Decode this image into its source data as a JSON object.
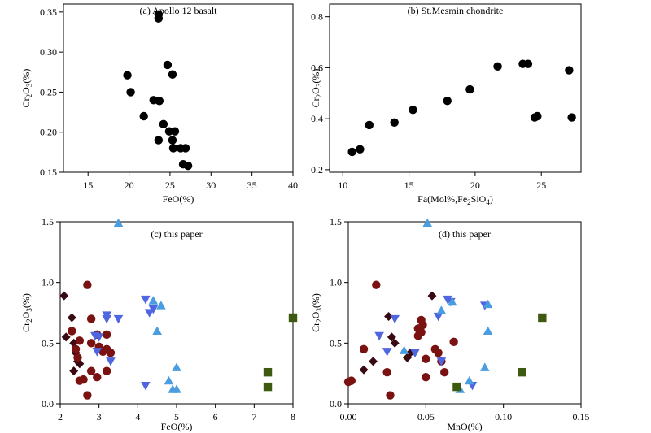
{
  "chart_data": [
    {
      "id": "a",
      "type": "scatter",
      "title": "(a) Apollo 12 basalt",
      "xlabel": "FeO(%)",
      "ylabel": {
        "base": "Cr",
        "sub1": "2",
        "mid": "O",
        "sub2": "3",
        "tail": "(%)"
      },
      "xlim": [
        12,
        40
      ],
      "ylim": [
        0.15,
        0.36
      ],
      "xticks": [
        15,
        20,
        25,
        30,
        35,
        40
      ],
      "yticks": [
        0.15,
        0.2,
        0.25,
        0.3,
        0.35
      ],
      "xtick_labels": [
        "15",
        "20",
        "25",
        "30",
        "35",
        "40"
      ],
      "ytick_labels": [
        "0.15",
        "0.20",
        "0.25",
        "0.30",
        "0.35"
      ],
      "series": [
        {
          "name": "Apollo 12 basalt",
          "marker": "circle",
          "color": "#000000",
          "points": [
            [
              23.6,
              0.347
            ],
            [
              23.6,
              0.342
            ],
            [
              19.8,
              0.271
            ],
            [
              20.2,
              0.25
            ],
            [
              21.8,
              0.22
            ],
            [
              23.0,
              0.24
            ],
            [
              23.7,
              0.239
            ],
            [
              24.2,
              0.21
            ],
            [
              23.6,
              0.19
            ],
            [
              24.7,
              0.284
            ],
            [
              25.3,
              0.272
            ],
            [
              24.9,
              0.201
            ],
            [
              25.6,
              0.201
            ],
            [
              25.3,
              0.19
            ],
            [
              25.4,
              0.18
            ],
            [
              26.3,
              0.18
            ],
            [
              26.9,
              0.18
            ],
            [
              26.6,
              0.16
            ],
            [
              27.2,
              0.158
            ]
          ]
        }
      ]
    },
    {
      "id": "b",
      "type": "scatter",
      "title": "(b) St.Mesmin chondrite",
      "xlabel": {
        "base": "Fa(Mol%,Fe",
        "sub1": "2",
        "mid": "SiO",
        "sub2": "4",
        "tail": ")"
      },
      "ylabel": {
        "base": "Cr",
        "sub1": "2",
        "mid": "O",
        "sub2": "3",
        "tail": "(%)"
      },
      "xlim": [
        9,
        28
      ],
      "ylim": [
        0.19,
        0.85
      ],
      "xticks": [
        10,
        15,
        20,
        25
      ],
      "yticks": [
        0.2,
        0.4,
        0.6,
        0.8
      ],
      "xtick_labels": [
        "10",
        "15",
        "20",
        "25"
      ],
      "ytick_labels": [
        "0.2",
        "0.4",
        "0.6",
        "0.8"
      ],
      "series": [
        {
          "name": "St.Mesmin chondrite",
          "marker": "circle",
          "color": "#000000",
          "points": [
            [
              10.7,
              0.27
            ],
            [
              11.3,
              0.28
            ],
            [
              12.0,
              0.375
            ],
            [
              13.9,
              0.385
            ],
            [
              15.3,
              0.435
            ],
            [
              17.9,
              0.47
            ],
            [
              19.6,
              0.515
            ],
            [
              21.7,
              0.605
            ],
            [
              23.6,
              0.615
            ],
            [
              24.0,
              0.615
            ],
            [
              24.5,
              0.405
            ],
            [
              24.7,
              0.41
            ],
            [
              27.1,
              0.59
            ],
            [
              27.3,
              0.405
            ]
          ]
        }
      ]
    },
    {
      "id": "c",
      "type": "scatter",
      "title": "(c) this paper",
      "xlabel": "FeO(%)",
      "ylabel": {
        "base": "Cr",
        "sub1": "2",
        "mid": "O",
        "sub2": "3",
        "tail": "(%)"
      },
      "xlim": [
        2,
        8
      ],
      "ylim": [
        0,
        1.5
      ],
      "xticks": [
        2,
        3,
        4,
        5,
        6,
        7,
        8
      ],
      "yticks": [
        0,
        0.5,
        1.0,
        1.5
      ],
      "xtick_labels": [
        "2",
        "3",
        "4",
        "5",
        "6",
        "7",
        "8"
      ],
      "ytick_labels": [
        "0.0",
        "0.5",
        "1.0",
        "1.5"
      ],
      "series": [
        {
          "name": "diamond",
          "marker": "diamond",
          "color": "#3a0a12",
          "points": [
            [
              2.1,
              0.89
            ],
            [
              2.15,
              0.55
            ],
            [
              2.3,
              0.71
            ],
            [
              2.35,
              0.5
            ],
            [
              2.4,
              0.42
            ],
            [
              2.35,
              0.27
            ],
            [
              2.45,
              0.35
            ],
            [
              2.5,
              0.33
            ]
          ]
        },
        {
          "name": "circle",
          "marker": "circle",
          "color": "#7a1212",
          "points": [
            [
              2.7,
              0.98
            ],
            [
              2.3,
              0.6
            ],
            [
              2.5,
              0.52
            ],
            [
              2.4,
              0.45
            ],
            [
              2.45,
              0.38
            ],
            [
              2.5,
              0.19
            ],
            [
              2.6,
              0.2
            ],
            [
              2.7,
              0.07
            ],
            [
              2.8,
              0.7
            ],
            [
              2.8,
              0.5
            ],
            [
              2.8,
              0.27
            ],
            [
              2.95,
              0.57
            ],
            [
              3.0,
              0.47
            ],
            [
              2.95,
              0.22
            ],
            [
              3.1,
              0.43
            ],
            [
              3.2,
              0.57
            ],
            [
              3.2,
              0.45
            ],
            [
              3.2,
              0.27
            ],
            [
              3.3,
              0.42
            ]
          ]
        },
        {
          "name": "down-triangle",
          "marker": "triangle-down",
          "color": "#4f66e0",
          "points": [
            [
              2.9,
              0.56
            ],
            [
              3.0,
              0.55
            ],
            [
              2.95,
              0.43
            ],
            [
              3.2,
              0.73
            ],
            [
              3.2,
              0.7
            ],
            [
              3.3,
              0.35
            ],
            [
              3.5,
              0.7
            ],
            [
              4.2,
              0.86
            ],
            [
              4.4,
              0.78
            ],
            [
              4.3,
              0.75
            ],
            [
              4.2,
              0.15
            ]
          ]
        },
        {
          "name": "up-triangle",
          "marker": "triangle-up",
          "color": "#4a9de0",
          "points": [
            [
              3.5,
              1.49
            ],
            [
              4.4,
              0.85
            ],
            [
              4.6,
              0.81
            ],
            [
              4.5,
              0.6
            ],
            [
              4.8,
              0.19
            ],
            [
              4.9,
              0.12
            ],
            [
              5.0,
              0.3
            ],
            [
              5.0,
              0.12
            ]
          ]
        },
        {
          "name": "square",
          "marker": "square",
          "color": "#3d5a10",
          "points": [
            [
              7.35,
              0.26
            ],
            [
              7.35,
              0.14
            ],
            [
              8.0,
              0.71
            ]
          ]
        }
      ]
    },
    {
      "id": "d",
      "type": "scatter",
      "title": "(d) this paper",
      "xlabel": "MnO(%)",
      "ylabel": {
        "base": "Cr",
        "sub1": "2",
        "mid": "O",
        "sub2": "3",
        "tail": "(%)"
      },
      "xlim": [
        0,
        0.15
      ],
      "ylim": [
        0,
        1.5
      ],
      "xticks": [
        0,
        0.05,
        0.1,
        0.15
      ],
      "yticks": [
        0,
        0.5,
        1.0,
        1.5
      ],
      "xtick_labels": [
        "0.00",
        "0.05",
        "0.10",
        "0.15"
      ],
      "ytick_labels": [
        "0.0",
        "0.5",
        "1.0",
        "1.5"
      ],
      "series": [
        {
          "name": "diamond",
          "marker": "diamond",
          "color": "#3a0a12",
          "points": [
            [
              0.054,
              0.89
            ],
            [
              0.026,
              0.72
            ],
            [
              0.028,
              0.55
            ],
            [
              0.03,
              0.5
            ],
            [
              0.04,
              0.42
            ],
            [
              0.038,
              0.38
            ],
            [
              0.016,
              0.35
            ],
            [
              0.01,
              0.28
            ]
          ]
        },
        {
          "name": "circle",
          "marker": "circle",
          "color": "#7a1212",
          "points": [
            [
              0.018,
              0.98
            ],
            [
              0.0,
              0.18
            ],
            [
              0.002,
              0.19
            ],
            [
              0.01,
              0.45
            ],
            [
              0.025,
              0.26
            ],
            [
              0.027,
              0.07
            ],
            [
              0.045,
              0.56
            ],
            [
              0.045,
              0.62
            ],
            [
              0.047,
              0.69
            ],
            [
              0.048,
              0.65
            ],
            [
              0.047,
              0.59
            ],
            [
              0.05,
              0.37
            ],
            [
              0.05,
              0.22
            ],
            [
              0.056,
              0.45
            ],
            [
              0.058,
              0.42
            ],
            [
              0.06,
              0.35
            ],
            [
              0.062,
              0.26
            ],
            [
              0.068,
              0.51
            ]
          ]
        },
        {
          "name": "down-triangle",
          "marker": "triangle-down",
          "color": "#4f66e0",
          "points": [
            [
              0.02,
              0.56
            ],
            [
              0.025,
              0.43
            ],
            [
              0.03,
              0.7
            ],
            [
              0.043,
              0.42
            ],
            [
              0.058,
              0.72
            ],
            [
              0.06,
              0.35
            ],
            [
              0.064,
              0.86
            ],
            [
              0.066,
              0.84
            ],
            [
              0.08,
              0.15
            ],
            [
              0.088,
              0.81
            ]
          ]
        },
        {
          "name": "up-triangle",
          "marker": "triangle-up",
          "color": "#4a9de0",
          "points": [
            [
              0.051,
              1.49
            ],
            [
              0.06,
              0.77
            ],
            [
              0.067,
              0.84
            ],
            [
              0.09,
              0.82
            ],
            [
              0.09,
              0.6
            ],
            [
              0.088,
              0.3
            ],
            [
              0.078,
              0.19
            ],
            [
              0.072,
              0.12
            ],
            [
              0.036,
              0.44
            ]
          ]
        },
        {
          "name": "square",
          "marker": "square",
          "color": "#3d5a10",
          "points": [
            [
              0.07,
              0.14
            ],
            [
              0.112,
              0.26
            ],
            [
              0.125,
              0.71
            ]
          ]
        }
      ]
    }
  ]
}
